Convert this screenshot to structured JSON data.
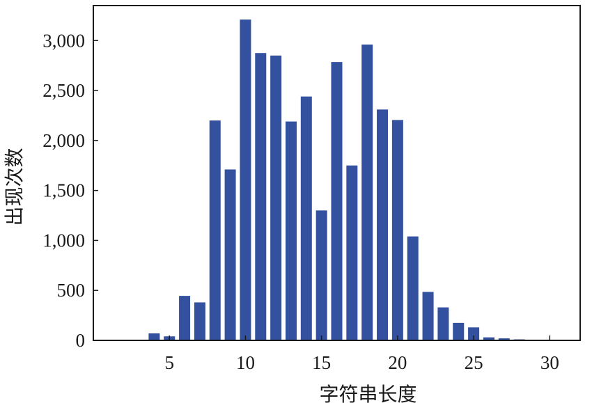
{
  "chart_data": {
    "type": "bar",
    "title": "",
    "xlabel": "字符串长度",
    "ylabel": "出现次数",
    "x": [
      4,
      5,
      6,
      7,
      8,
      9,
      10,
      11,
      12,
      13,
      14,
      15,
      16,
      17,
      18,
      19,
      20,
      21,
      22,
      23,
      24,
      25,
      26,
      27,
      28
    ],
    "values": [
      70,
      40,
      445,
      380,
      2200,
      1710,
      3210,
      2875,
      2850,
      2190,
      2440,
      1300,
      2785,
      1750,
      2960,
      2310,
      2205,
      1040,
      485,
      330,
      175,
      130,
      30,
      20,
      10
    ],
    "xlim": [
      0,
      32
    ],
    "ylim": [
      0,
      3350
    ],
    "xticks": [
      5,
      10,
      15,
      20,
      25,
      30
    ],
    "xtick_labels": [
      "5",
      "10",
      "15",
      "20",
      "25",
      "30"
    ],
    "yticks": [
      0,
      500,
      1000,
      1500,
      2000,
      2500,
      3000
    ],
    "ytick_labels": [
      "0",
      "500",
      "1,000",
      "1,500",
      "2,000",
      "2,500",
      "3,000"
    ],
    "bar_color": "#3451a0",
    "axis_color": "#1a1a1a",
    "grid": false,
    "legend": "none"
  }
}
